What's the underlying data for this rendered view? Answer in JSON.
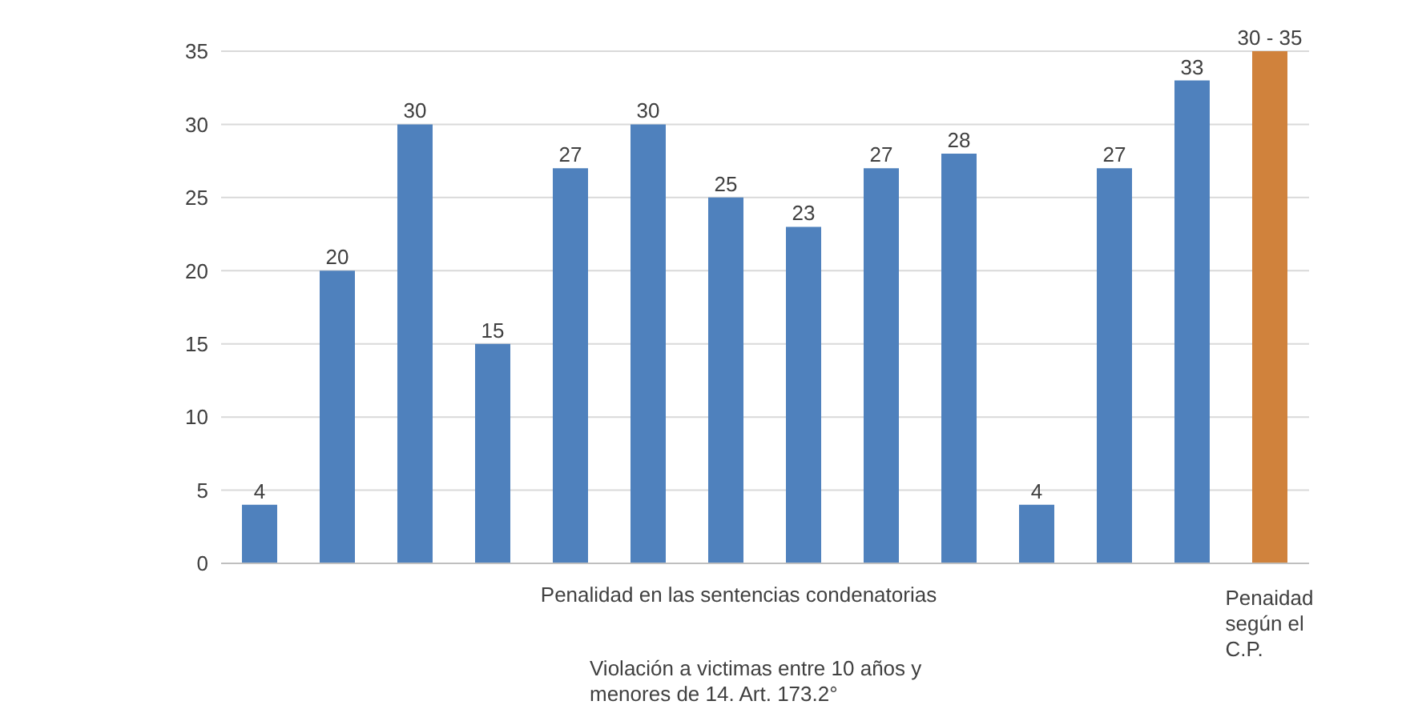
{
  "chart_data": {
    "type": "bar",
    "xlabel": "Violación a victimas entre 10 años y menores de 14. Art. 173.2°",
    "annotations": [
      "Penalidad en las sentencias condenatorias",
      {
        "text": "30 - 35",
        "x": "Penaidad según el C.P.",
        "y": 35
      }
    ],
    "categories": [
      null,
      null,
      null,
      null,
      null,
      null,
      null,
      null,
      null,
      null,
      null,
      null,
      null,
      "Penaidad según el C.P."
    ],
    "values": [
      4,
      20,
      30,
      15,
      27,
      30,
      25,
      23,
      27,
      28,
      4,
      27,
      33,
      35
    ],
    "value_labels": [
      "4",
      "20",
      "30",
      "15",
      "27",
      "30",
      "25",
      "23",
      "27",
      "28",
      "4",
      "27",
      "33",
      null
    ],
    "colors": [
      "#4f81bd",
      "#4f81bd",
      "#4f81bd",
      "#4f81bd",
      "#4f81bd",
      "#4f81bd",
      "#4f81bd",
      "#4f81bd",
      "#4f81bd",
      "#4f81bd",
      "#4f81bd",
      "#4f81bd",
      "#4f81bd",
      "#d0823c"
    ],
    "ylim": [
      0,
      35
    ],
    "yticks": [
      0,
      5,
      10,
      15,
      20,
      25,
      30,
      35
    ],
    "grid": "y"
  }
}
